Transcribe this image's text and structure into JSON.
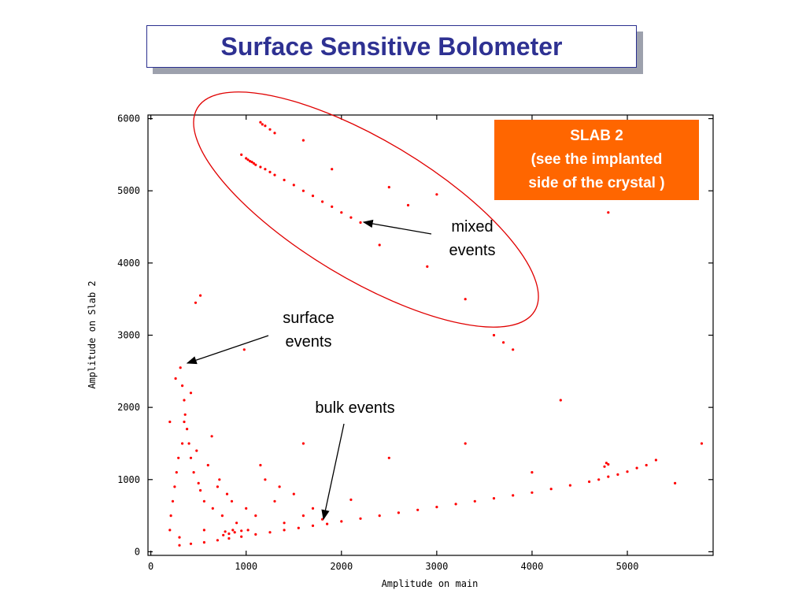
{
  "slide": {
    "title": "Surface Sensitive Bolometer"
  },
  "callout": {
    "line1": "SLAB 2",
    "line2": "(see the implanted",
    "line3": "side of the crystal )",
    "color": "#ff6600"
  },
  "annotations": {
    "mixed_line1": "mixed",
    "mixed_line2": "events",
    "surface_line1": "surface",
    "surface_line2": "events",
    "bulk": "bulk events"
  },
  "chart_data": {
    "type": "scatter",
    "title": "",
    "xlabel": "Amplitude on main",
    "ylabel": "Amplitude on Slab 2",
    "xlim": [
      -30,
      5900
    ],
    "ylim": [
      -50,
      6050
    ],
    "xticks": [
      0,
      1000,
      2000,
      3000,
      4000,
      5000
    ],
    "yticks": [
      0,
      1000,
      2000,
      3000,
      4000,
      5000,
      6000
    ],
    "xtick_labels": [
      "0",
      "1000",
      "2000",
      "3000",
      "4000",
      "5000"
    ],
    "ytick_labels": [
      "0",
      "1000",
      "2000",
      "3000",
      "4000",
      "5000",
      "6000"
    ],
    "grid": false,
    "point_color": "#ff0000",
    "ellipse_color": "#ff0000",
    "series": [
      {
        "name": "bulk events",
        "x": [
          300,
          420,
          560,
          700,
          820,
          950,
          1100,
          1250,
          1400,
          1550,
          1700,
          1850,
          2000,
          2200,
          2400,
          2600,
          2800,
          3000,
          3200,
          3400,
          3600,
          3800,
          4000,
          4200,
          4400,
          4600,
          4700,
          4800,
          4900,
          5000,
          5100,
          5200,
          5300,
          760,
          820,
          880,
          950,
          1020,
          780,
          860,
          2100,
          4760,
          4780,
          4800
        ],
        "y": [
          90,
          110,
          130,
          160,
          185,
          210,
          240,
          270,
          300,
          330,
          360,
          385,
          420,
          460,
          500,
          540,
          580,
          620,
          660,
          700,
          740,
          780,
          820,
          870,
          920,
          970,
          1000,
          1040,
          1070,
          1110,
          1160,
          1200,
          1270,
          230,
          250,
          270,
          290,
          300,
          280,
          300,
          720,
          1180,
          1230,
          1210
        ]
      },
      {
        "name": "surface events",
        "x": [
          310,
          330,
          350,
          360,
          380,
          330,
          290,
          270,
          250,
          230,
          210,
          200,
          400,
          420,
          450,
          500,
          520,
          560,
          600,
          650,
          700,
          750,
          800,
          850,
          900,
          1000,
          1100,
          1200,
          1300,
          1400,
          1500,
          1600,
          1700,
          1800,
          300,
          350,
          420,
          480,
          560,
          640,
          720,
          980,
          1150,
          1350,
          1600,
          2500,
          3300,
          4000,
          4300,
          470,
          520,
          200,
          260
        ],
        "y": [
          2550,
          2300,
          2100,
          1900,
          1700,
          1500,
          1300,
          1100,
          900,
          700,
          500,
          300,
          1500,
          1300,
          1100,
          950,
          850,
          700,
          1200,
          600,
          900,
          500,
          800,
          700,
          400,
          600,
          500,
          1000,
          700,
          400,
          800,
          500,
          600,
          450,
          200,
          1800,
          2200,
          1400,
          300,
          1600,
          1000,
          2800,
          1200,
          900,
          1500,
          1300,
          1500,
          1100,
          2100,
          3450,
          3550,
          1800,
          2400
        ]
      },
      {
        "name": "mixed events",
        "x": [
          1000,
          1020,
          1040,
          1060,
          1080,
          1100,
          1150,
          1200,
          1250,
          1300,
          1400,
          1500,
          1600,
          1700,
          1800,
          1900,
          2000,
          2100,
          2200,
          1150,
          1170,
          1200,
          1250,
          1300,
          950,
          1600,
          1900,
          2400,
          2500,
          2700,
          2900,
          3000,
          3300,
          3600,
          3700,
          3800,
          4800,
          5500,
          5780
        ],
        "y": [
          5450,
          5430,
          5410,
          5400,
          5380,
          5360,
          5330,
          5300,
          5260,
          5220,
          5150,
          5080,
          5000,
          4930,
          4850,
          4780,
          4700,
          4630,
          4560,
          5950,
          5920,
          5900,
          5850,
          5800,
          5500,
          5700,
          5300,
          4250,
          5050,
          4800,
          3950,
          4950,
          3500,
          3000,
          2900,
          2800,
          4700,
          950,
          1500
        ]
      }
    ]
  }
}
